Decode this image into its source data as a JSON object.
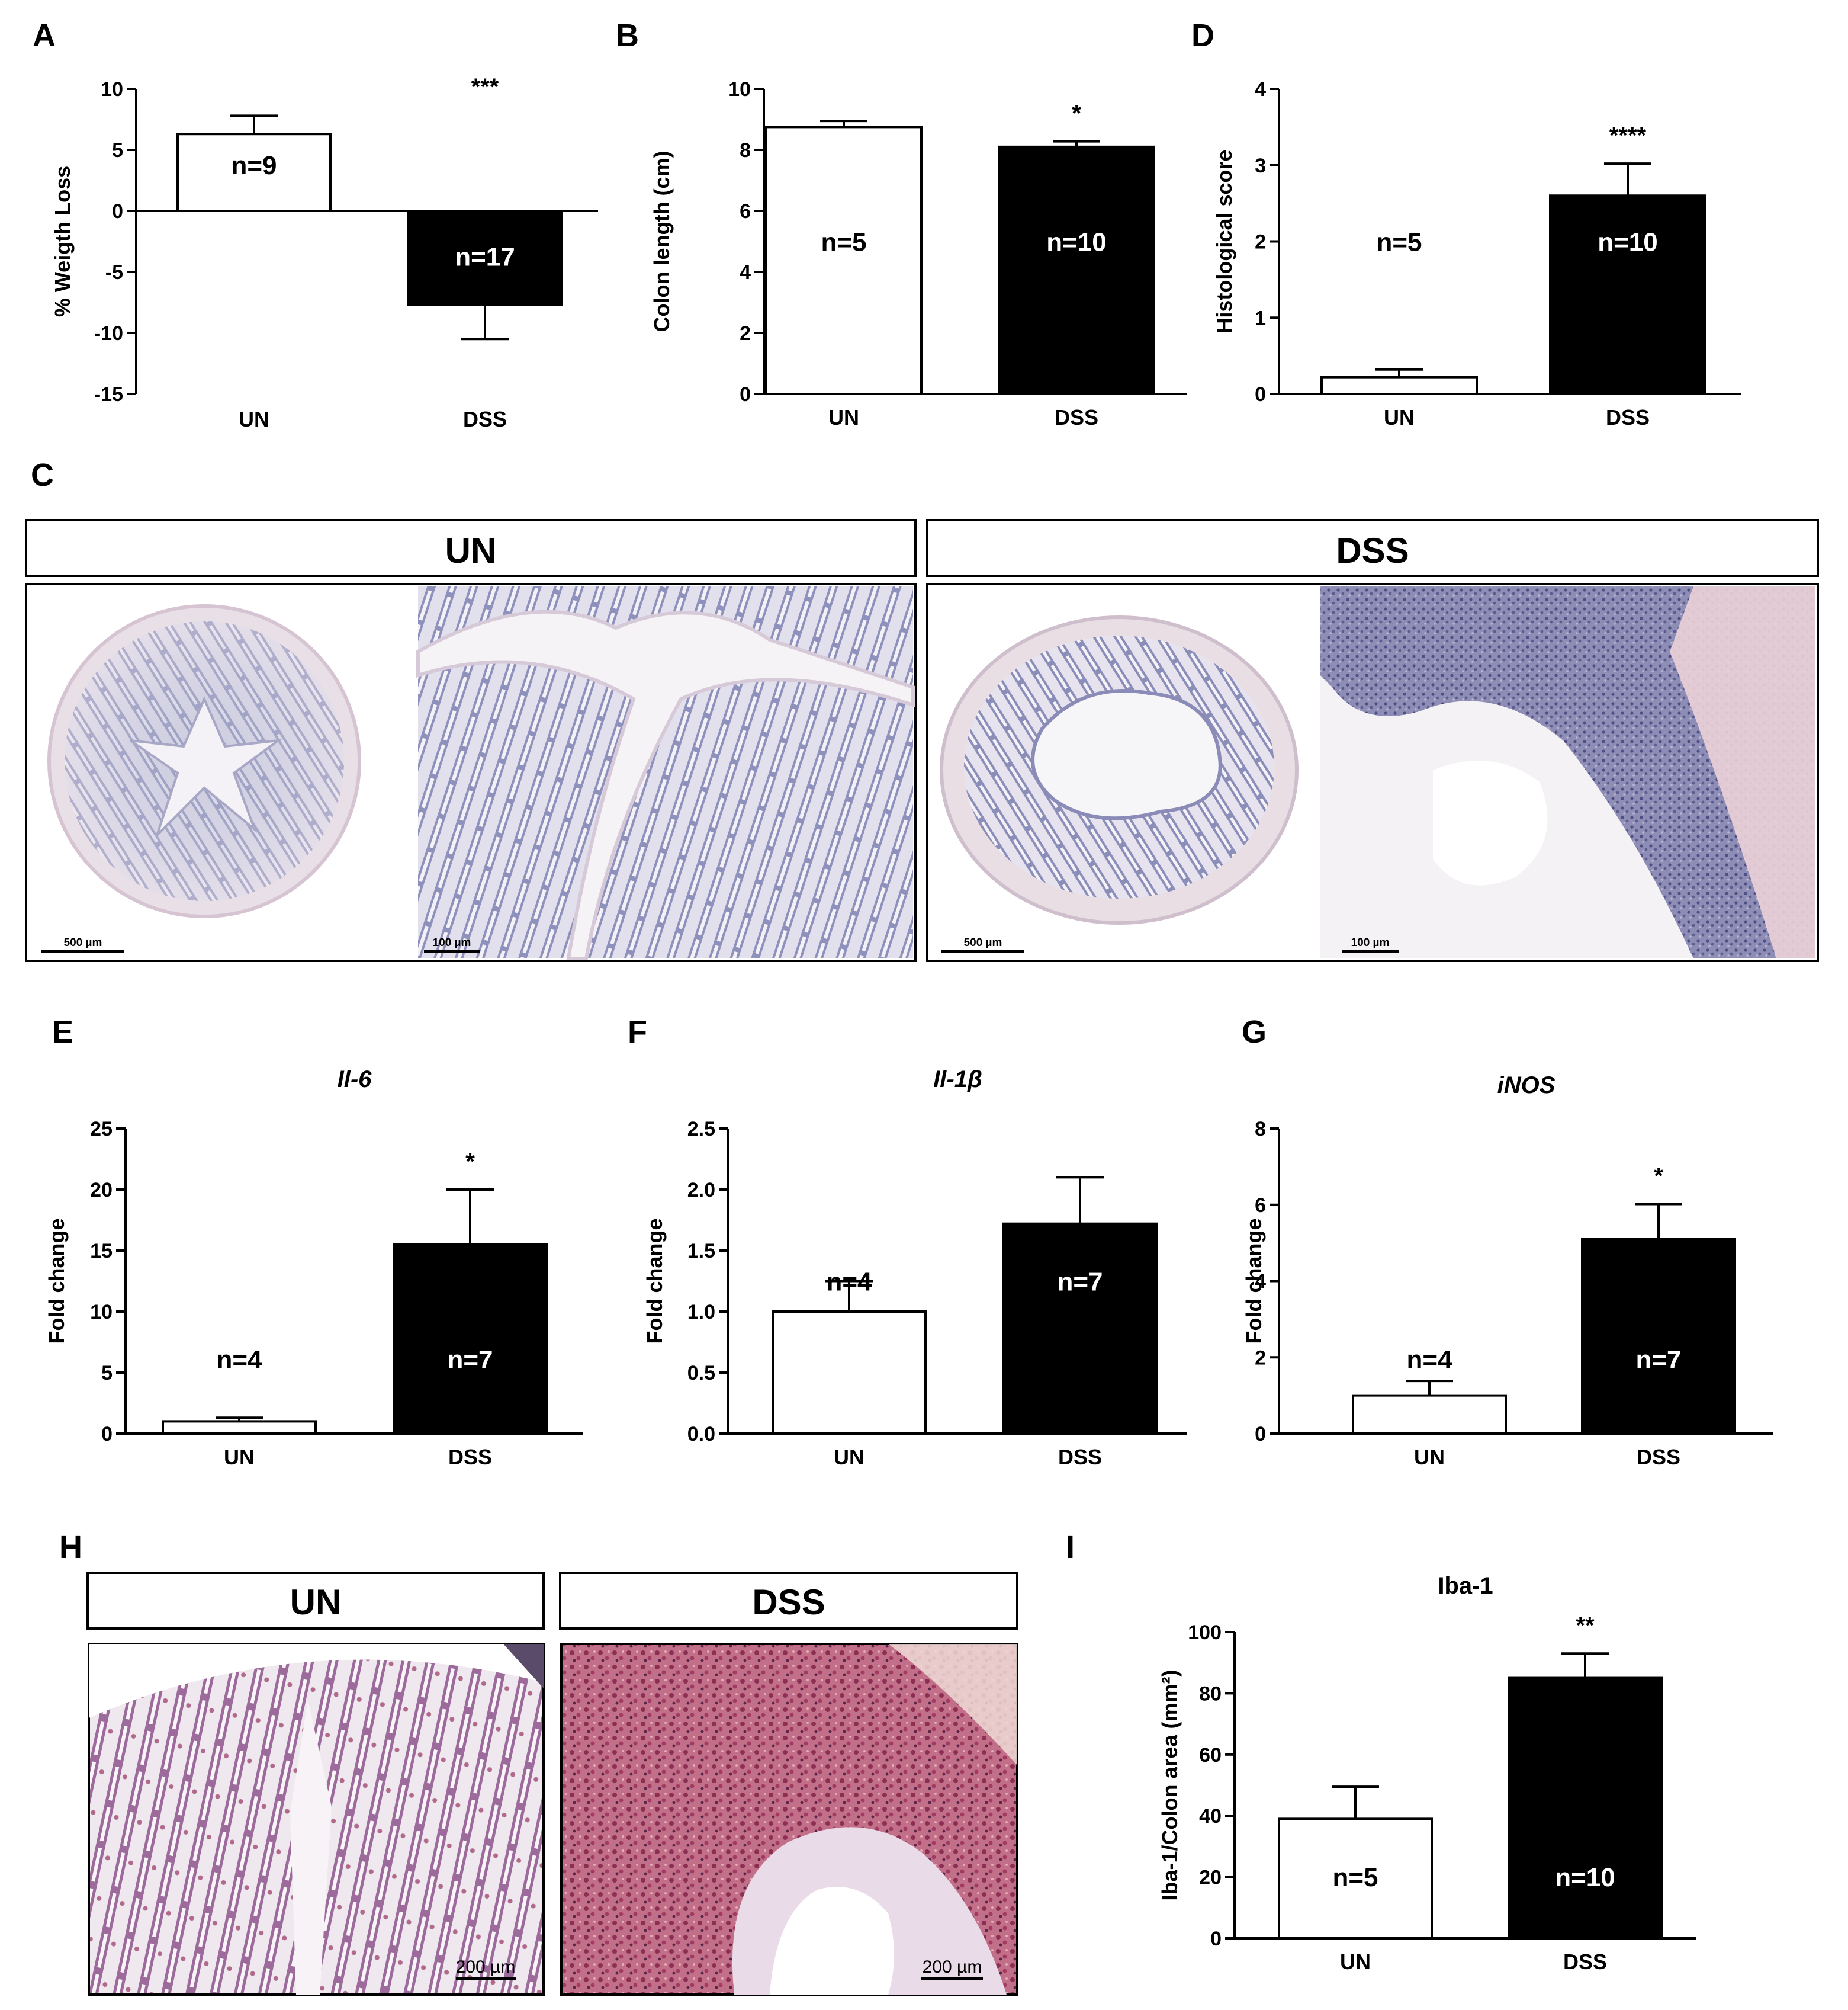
{
  "colors": {
    "un_fill": "#ffffff",
    "dss_fill": "#000000",
    "axis": "#000000"
  },
  "panel_c": {
    "letter": "C",
    "headers": [
      "UN",
      "DSS"
    ],
    "scale_bars": [
      "500 µm",
      "100 µm",
      "500 µm",
      "100 µm"
    ],
    "images": [
      "un-colon-overview-he",
      "un-colon-detail-he",
      "dss-colon-overview-he",
      "dss-colon-detail-he"
    ]
  },
  "panel_h": {
    "letter": "H",
    "headers": [
      "UN",
      "DSS"
    ],
    "scale_bars": [
      "200 µm",
      "200 µm"
    ],
    "images": [
      "un-colon-iba1-stain",
      "dss-colon-iba1-stain"
    ]
  },
  "chart_data": [
    {
      "id": "A",
      "letter": "A",
      "type": "bar",
      "title": "",
      "ylabel": "% Weigth Loss",
      "xlabel": "",
      "categories": [
        "UN",
        "DSS"
      ],
      "values": [
        6.3,
        -7.7
      ],
      "errors": [
        1.5,
        2.8
      ],
      "n_labels": [
        "n=9",
        "n=17"
      ],
      "significance": "***",
      "ylim": [
        -15,
        10
      ],
      "yticks": [
        10,
        5,
        0,
        -5,
        -10,
        -15
      ],
      "ytick_labels": [
        "10",
        "5",
        "0",
        "-5",
        "-10",
        "-15"
      ],
      "baseline": 0
    },
    {
      "id": "B",
      "letter": "B",
      "type": "bar",
      "title": "",
      "ylabel": "Colon length (cm)",
      "xlabel": "",
      "categories": [
        "UN",
        "DSS"
      ],
      "values": [
        8.75,
        8.1
      ],
      "errors": [
        0.2,
        0.18
      ],
      "n_labels": [
        "n=5",
        "n=10"
      ],
      "significance": "*",
      "ylim": [
        0,
        10
      ],
      "yticks": [
        10,
        8,
        6,
        4,
        2,
        0
      ],
      "ytick_labels": [
        "10",
        "8",
        "6",
        "4",
        "2",
        "0"
      ],
      "baseline": 0
    },
    {
      "id": "D",
      "letter": "D",
      "type": "bar",
      "title": "",
      "ylabel": "Histological score",
      "xlabel": "",
      "categories": [
        "UN",
        "DSS"
      ],
      "values": [
        0.22,
        2.6
      ],
      "errors": [
        0.1,
        0.42
      ],
      "n_labels": [
        "n=5",
        "n=10"
      ],
      "significance": "****",
      "ylim": [
        0,
        4
      ],
      "yticks": [
        4,
        3,
        2,
        1,
        0
      ],
      "ytick_labels": [
        "4",
        "3",
        "2",
        "1",
        "0"
      ],
      "baseline": 0
    },
    {
      "id": "E",
      "letter": "E",
      "type": "bar",
      "title": "Il-6",
      "ylabel": "Fold change",
      "xlabel": "",
      "categories": [
        "UN",
        "DSS"
      ],
      "values": [
        1.0,
        15.5
      ],
      "errors": [
        0.3,
        4.5
      ],
      "n_labels": [
        "n=4",
        "n=7"
      ],
      "significance": "*",
      "ylim": [
        0,
        25
      ],
      "yticks": [
        25,
        20,
        15,
        10,
        5,
        0
      ],
      "ytick_labels": [
        "25",
        "20",
        "15",
        "10",
        "5",
        "0"
      ],
      "baseline": 0
    },
    {
      "id": "F",
      "letter": "F",
      "type": "bar",
      "title": "Il-1β",
      "ylabel": "Fold change",
      "xlabel": "",
      "categories": [
        "UN",
        "DSS"
      ],
      "values": [
        1.0,
        1.72
      ],
      "errors": [
        0.25,
        0.38
      ],
      "n_labels": [
        "n=4",
        "n=7"
      ],
      "significance": "",
      "ylim": [
        0,
        2.5
      ],
      "yticks": [
        2.5,
        2.0,
        1.5,
        1.0,
        0.5,
        0.0
      ],
      "ytick_labels": [
        "2.5",
        "2.0",
        "1.5",
        "1.0",
        "0.5",
        "0.0"
      ],
      "baseline": 0
    },
    {
      "id": "G",
      "letter": "G",
      "type": "bar",
      "title": "iNOS",
      "ylabel": "Fold change",
      "xlabel": "",
      "categories": [
        "UN",
        "DSS"
      ],
      "values": [
        1.0,
        5.1
      ],
      "errors": [
        0.38,
        0.92
      ],
      "n_labels": [
        "n=4",
        "n=7"
      ],
      "significance": "*",
      "ylim": [
        0,
        8
      ],
      "yticks": [
        8,
        6,
        4,
        2,
        0
      ],
      "ytick_labels": [
        "8",
        "6",
        "4",
        "2",
        "0"
      ],
      "baseline": 0
    },
    {
      "id": "I",
      "letter": "I",
      "type": "bar",
      "title": "Iba-1",
      "ylabel": "Iba-1/Colon area (mm²)",
      "xlabel": "",
      "categories": [
        "UN",
        "DSS"
      ],
      "values": [
        39,
        85
      ],
      "errors": [
        10.5,
        8
      ],
      "n_labels": [
        "n=5",
        "n=10"
      ],
      "significance": "**",
      "ylim": [
        0,
        100
      ],
      "yticks": [
        100,
        80,
        60,
        40,
        20,
        0
      ],
      "ytick_labels": [
        "100",
        "80",
        "60",
        "40",
        "20",
        "0"
      ],
      "baseline": 0
    }
  ]
}
